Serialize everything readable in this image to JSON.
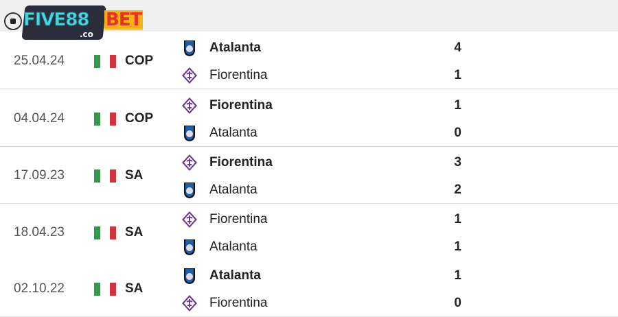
{
  "brand": {
    "logo_text": "FIVE88BET",
    "logo_sub": ".co"
  },
  "colors": {
    "flag_green": "#2f9a4a",
    "flag_white": "#ffffff",
    "flag_red": "#d1343f",
    "fiorentina": "#6a3a9a",
    "atalanta": "#1f5fa8"
  },
  "matches": [
    {
      "date": "25.04.24",
      "flag": "italy-flag-icon",
      "competition": "COP",
      "teams": [
        {
          "name": "Atalanta",
          "crest": "atalanta-crest-icon",
          "score": "4",
          "winner": true
        },
        {
          "name": "Fiorentina",
          "crest": "fiorentina-crest-icon",
          "score": "1",
          "winner": false
        }
      ]
    },
    {
      "date": "04.04.24",
      "flag": "italy-flag-icon",
      "competition": "COP",
      "teams": [
        {
          "name": "Fiorentina",
          "crest": "fiorentina-crest-icon",
          "score": "1",
          "winner": true
        },
        {
          "name": "Atalanta",
          "crest": "atalanta-crest-icon",
          "score": "0",
          "winner": false
        }
      ]
    },
    {
      "date": "17.09.23",
      "flag": "italy-flag-icon",
      "competition": "SA",
      "teams": [
        {
          "name": "Fiorentina",
          "crest": "fiorentina-crest-icon",
          "score": "3",
          "winner": true
        },
        {
          "name": "Atalanta",
          "crest": "atalanta-crest-icon",
          "score": "2",
          "winner": false
        }
      ]
    },
    {
      "date": "18.04.23",
      "flag": "italy-flag-icon",
      "competition": "SA",
      "teams": [
        {
          "name": "Fiorentina",
          "crest": "fiorentina-crest-icon",
          "score": "1",
          "winner": false
        },
        {
          "name": "Atalanta",
          "crest": "atalanta-crest-icon",
          "score": "1",
          "winner": false
        }
      ]
    },
    {
      "date": "02.10.22",
      "flag": "italy-flag-icon",
      "competition": "SA",
      "teams": [
        {
          "name": "Atalanta",
          "crest": "atalanta-crest-icon",
          "score": "1",
          "winner": true
        },
        {
          "name": "Fiorentina",
          "crest": "fiorentina-crest-icon",
          "score": "0",
          "winner": false
        }
      ]
    }
  ]
}
